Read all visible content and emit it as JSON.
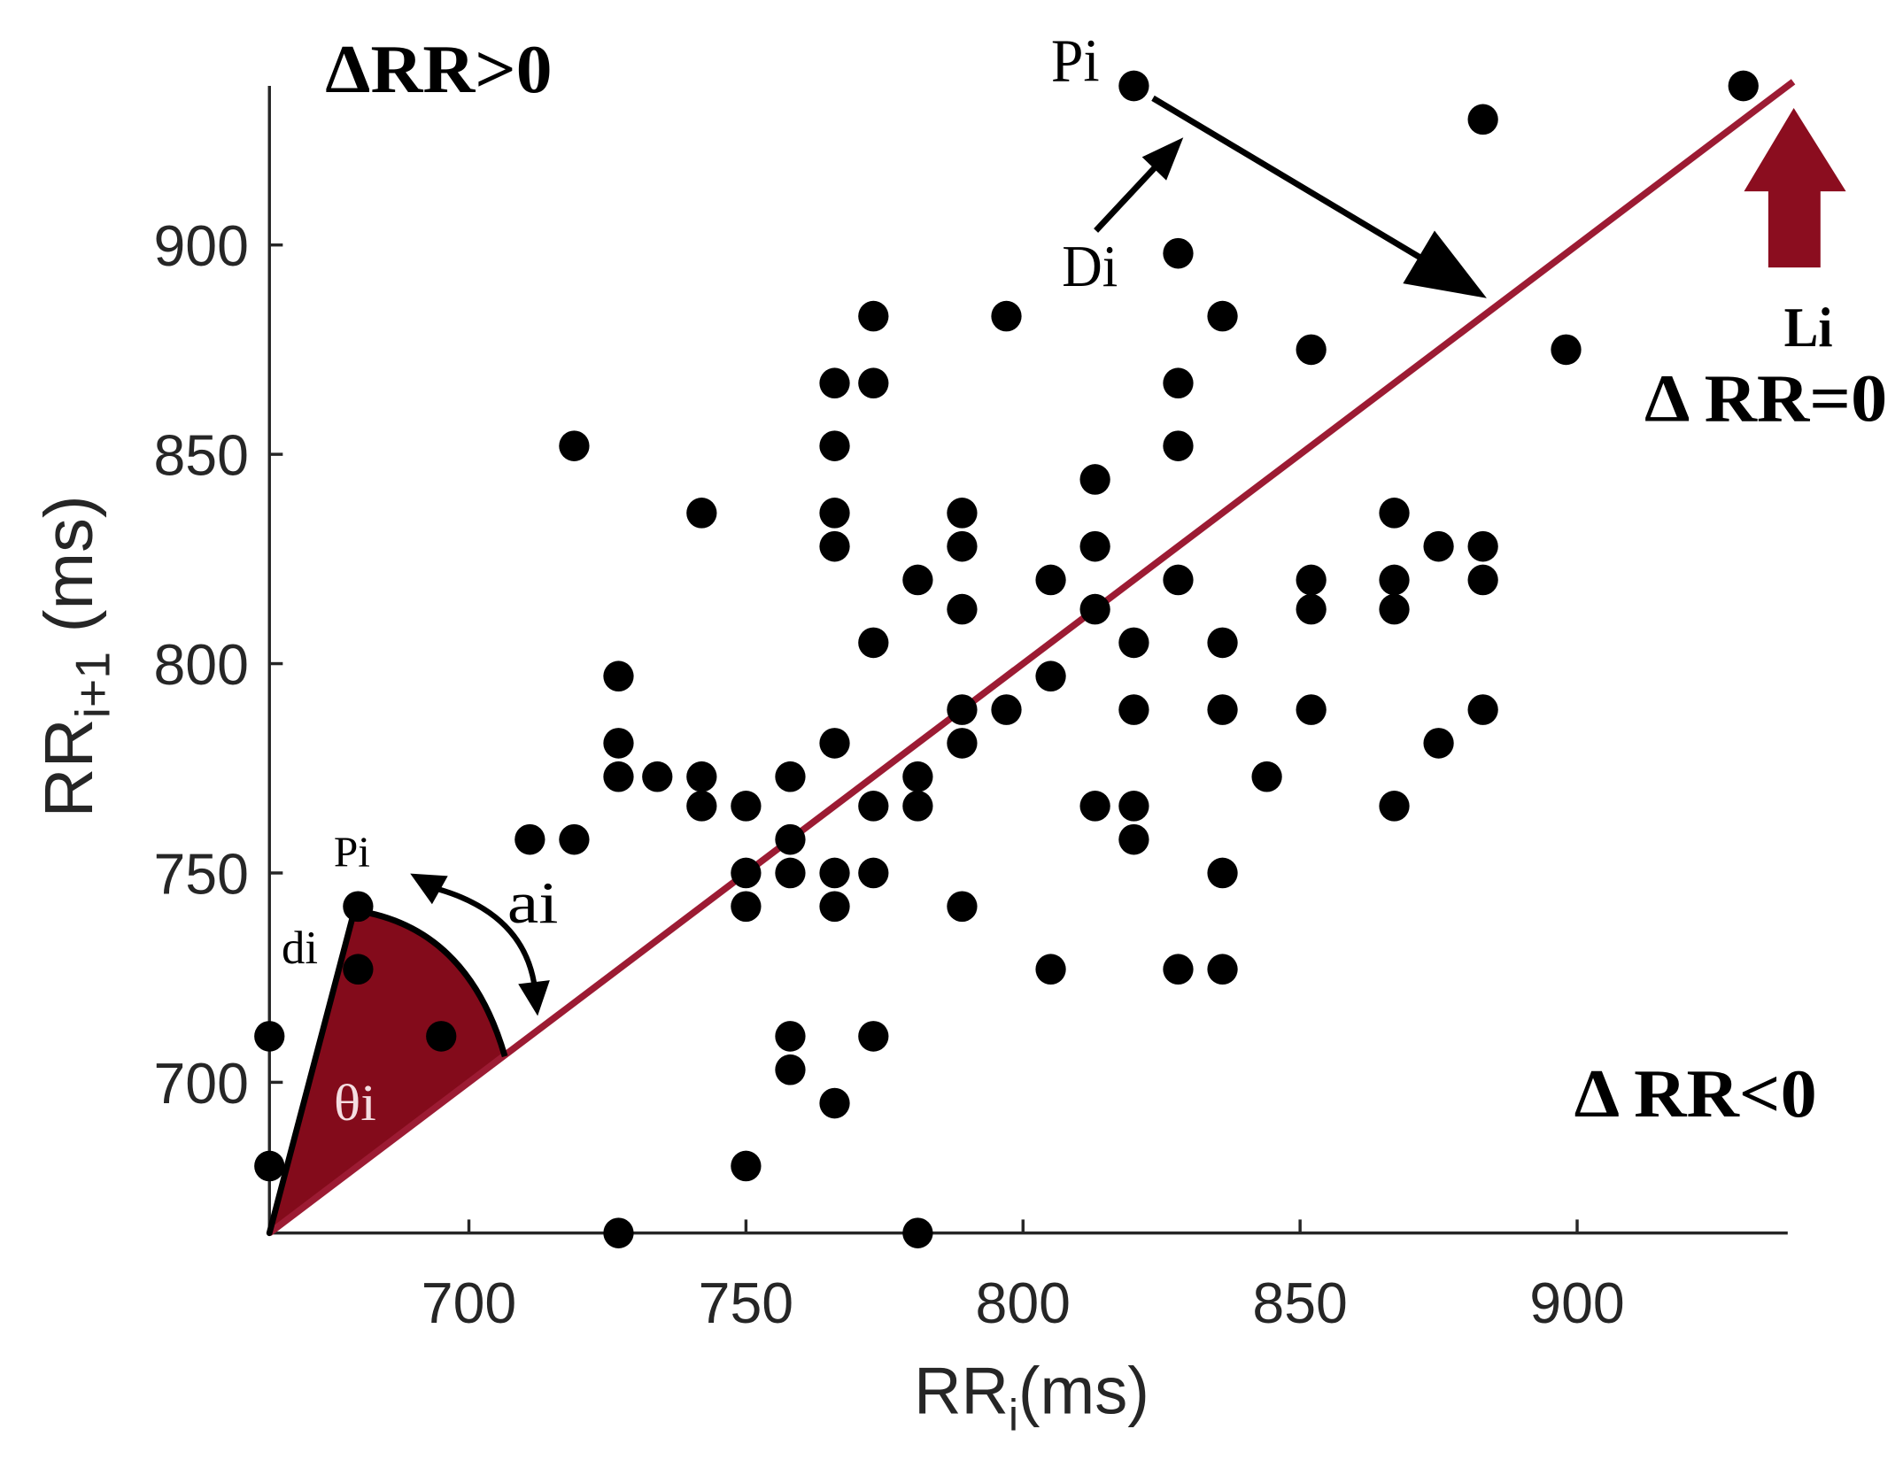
{
  "colors": {
    "background": "#ffffff",
    "point": "#000000",
    "axis": "#262626",
    "tick_label": "#262626",
    "identity_line": "#9c1b33",
    "wedge": "#830b1b",
    "block_arrow": "#8b0d1f",
    "annotation": "#000000",
    "angle_label": "#f4dde1"
  },
  "chart_data": {
    "type": "scatter",
    "xlabel": {
      "main": "RR",
      "sub": "i",
      "suffix": "(ms)"
    },
    "ylabel": {
      "main": "RR",
      "sub": "i+1",
      "suffix": " (ms)"
    },
    "xlim": [
      664,
      938
    ],
    "ylim": [
      664,
      938
    ],
    "xticks": [
      700,
      750,
      800,
      850,
      900
    ],
    "yticks": [
      700,
      750,
      800,
      850,
      900
    ],
    "grid": false,
    "identity_line": {
      "from": [
        664,
        664
      ],
      "to": [
        939,
        939
      ]
    },
    "points": [
      [
        820,
        938
      ],
      [
        930,
        938
      ],
      [
        883,
        930
      ],
      [
        828,
        898
      ],
      [
        773,
        883
      ],
      [
        797,
        883
      ],
      [
        836,
        883
      ],
      [
        852,
        875
      ],
      [
        898,
        875
      ],
      [
        766,
        867
      ],
      [
        773,
        867
      ],
      [
        828,
        867
      ],
      [
        719,
        852
      ],
      [
        766,
        852
      ],
      [
        828,
        852
      ],
      [
        813,
        844
      ],
      [
        742,
        836
      ],
      [
        766,
        836
      ],
      [
        789,
        836
      ],
      [
        867,
        836
      ],
      [
        766,
        828
      ],
      [
        789,
        828
      ],
      [
        813,
        828
      ],
      [
        875,
        828
      ],
      [
        883,
        828
      ],
      [
        781,
        820
      ],
      [
        805,
        820
      ],
      [
        828,
        820
      ],
      [
        852,
        820
      ],
      [
        867,
        820
      ],
      [
        883,
        820
      ],
      [
        789,
        813
      ],
      [
        813,
        813
      ],
      [
        852,
        813
      ],
      [
        867,
        813
      ],
      [
        773,
        805
      ],
      [
        820,
        805
      ],
      [
        836,
        805
      ],
      [
        727,
        797
      ],
      [
        805,
        797
      ],
      [
        789,
        789
      ],
      [
        797,
        789
      ],
      [
        820,
        789
      ],
      [
        836,
        789
      ],
      [
        852,
        789
      ],
      [
        883,
        789
      ],
      [
        727,
        781
      ],
      [
        766,
        781
      ],
      [
        789,
        781
      ],
      [
        875,
        781
      ],
      [
        727,
        773
      ],
      [
        734,
        773
      ],
      [
        742,
        773
      ],
      [
        758,
        773
      ],
      [
        781,
        773
      ],
      [
        844,
        773
      ],
      [
        742,
        766
      ],
      [
        750,
        766
      ],
      [
        773,
        766
      ],
      [
        781,
        766
      ],
      [
        813,
        766
      ],
      [
        820,
        766
      ],
      [
        867,
        766
      ],
      [
        711,
        758
      ],
      [
        719,
        758
      ],
      [
        758,
        758
      ],
      [
        820,
        758
      ],
      [
        750,
        750
      ],
      [
        758,
        750
      ],
      [
        766,
        750
      ],
      [
        773,
        750
      ],
      [
        836,
        750
      ],
      [
        680,
        742
      ],
      [
        750,
        742
      ],
      [
        766,
        742
      ],
      [
        789,
        742
      ],
      [
        680,
        727
      ],
      [
        805,
        727
      ],
      [
        828,
        727
      ],
      [
        836,
        727
      ],
      [
        664,
        711
      ],
      [
        695,
        711
      ],
      [
        758,
        711
      ],
      [
        773,
        711
      ],
      [
        758,
        703
      ],
      [
        766,
        695
      ],
      [
        664,
        680
      ],
      [
        750,
        680
      ],
      [
        727,
        664
      ],
      [
        781,
        664
      ]
    ],
    "annotations": {
      "region_above": "ΔRR>0",
      "region_on_line": "Δ RR=0",
      "region_below": "Δ RR<0",
      "far_point": "Pi",
      "far_distance": "Di",
      "line": "Li",
      "near_point": "Pi",
      "near_distance": "di",
      "arc": "ai",
      "angle": "θi"
    }
  }
}
